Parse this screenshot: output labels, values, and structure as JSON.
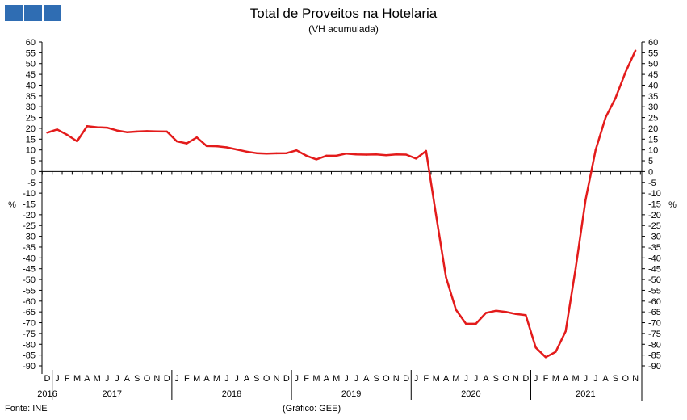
{
  "logo": {
    "blocks": 3,
    "color": "#2f6db3"
  },
  "chart_data": {
    "type": "line",
    "title": "Total de Proveitos na Hotelaria",
    "subtitle": "(VH acumulada)",
    "ylabel_left": "%",
    "ylabel_right": "%",
    "ylim": [
      -90,
      60
    ],
    "ytick_step": 5,
    "grid": false,
    "line_color": "#e31b1b",
    "x_month_labels": [
      "D",
      "J",
      "F",
      "M",
      "A",
      "M",
      "J",
      "J",
      "A",
      "S",
      "O",
      "N",
      "D",
      "J",
      "F",
      "M",
      "A",
      "M",
      "J",
      "J",
      "A",
      "S",
      "O",
      "N",
      "D",
      "J",
      "F",
      "M",
      "A",
      "M",
      "J",
      "J",
      "A",
      "S",
      "O",
      "N",
      "D",
      "J",
      "F",
      "M",
      "A",
      "M",
      "J",
      "J",
      "A",
      "S",
      "O",
      "N",
      "D",
      "J",
      "F",
      "M",
      "A",
      "M",
      "J",
      "J",
      "A",
      "S",
      "O",
      "N"
    ],
    "years": [
      {
        "label": "2016",
        "first_index": 0,
        "last_index": 0
      },
      {
        "label": "2017",
        "first_index": 1,
        "last_index": 12
      },
      {
        "label": "2018",
        "first_index": 13,
        "last_index": 24
      },
      {
        "label": "2019",
        "first_index": 25,
        "last_index": 36
      },
      {
        "label": "2020",
        "first_index": 37,
        "last_index": 48
      },
      {
        "label": "2021",
        "first_index": 49,
        "last_index": 59
      }
    ],
    "series": [
      {
        "values": [
          18,
          19.5,
          17,
          14,
          21,
          20.5,
          20.3,
          19,
          18.2,
          18.5,
          18.7,
          18.6,
          18.5,
          14,
          13,
          15.8,
          11.8,
          11.7,
          11.2,
          10.2,
          9.2,
          8.5,
          8.3,
          8.4,
          8.5,
          9.8,
          7.3,
          5.6,
          7.3,
          7.3,
          8.3,
          7.9,
          7.8,
          7.9,
          7.5,
          7.9,
          7.8,
          6,
          9.5,
          -20,
          -49,
          -64,
          -70.5,
          -70.5,
          -65.5,
          -64.5,
          -65,
          -66,
          -66.5,
          -81.5,
          -86,
          -83.5,
          -74,
          -45,
          -13,
          10,
          25,
          34,
          46,
          56
        ]
      }
    ]
  },
  "footer": {
    "source": "Fonte: INE",
    "credit": "(Gráfico: GEE)"
  }
}
